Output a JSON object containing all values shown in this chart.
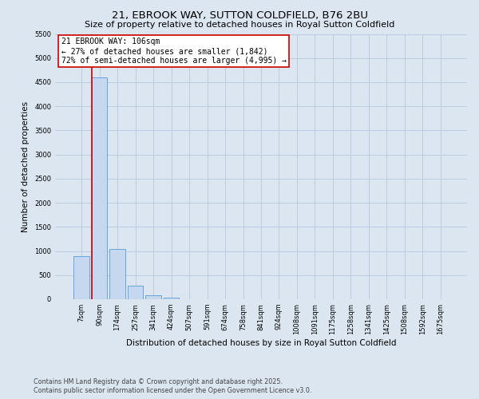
{
  "title": "21, EBROOK WAY, SUTTON COLDFIELD, B76 2BU",
  "subtitle": "Size of property relative to detached houses in Royal Sutton Coldfield",
  "xlabel": "Distribution of detached houses by size in Royal Sutton Coldfield",
  "ylabel": "Number of detached properties",
  "categories": [
    "7sqm",
    "90sqm",
    "174sqm",
    "257sqm",
    "341sqm",
    "424sqm",
    "507sqm",
    "591sqm",
    "674sqm",
    "758sqm",
    "841sqm",
    "924sqm",
    "1008sqm",
    "1091sqm",
    "1175sqm",
    "1258sqm",
    "1341sqm",
    "1425sqm",
    "1508sqm",
    "1592sqm",
    "1675sqm"
  ],
  "values": [
    900,
    4600,
    1050,
    280,
    80,
    35,
    0,
    0,
    0,
    0,
    0,
    0,
    0,
    0,
    0,
    0,
    0,
    0,
    0,
    0,
    0
  ],
  "bar_color": "#c5d8f0",
  "bar_edge_color": "#5b9bd5",
  "bar_edge_width": 0.6,
  "vline_color": "#cc0000",
  "annotation_line1": "21 EBROOK WAY: 106sqm",
  "annotation_line2": "← 27% of detached houses are smaller (1,842)",
  "annotation_line3": "72% of semi-detached houses are larger (4,995) →",
  "annotation_box_color": "#cc0000",
  "annotation_bg": "#ffffff",
  "ylim": [
    0,
    5500
  ],
  "yticks": [
    0,
    500,
    1000,
    1500,
    2000,
    2500,
    3000,
    3500,
    4000,
    4500,
    5000,
    5500
  ],
  "grid_color": "#b8c8dc",
  "bg_color": "#dce6f1",
  "plot_bg": "#dce6f1",
  "footer_line1": "Contains HM Land Registry data © Crown copyright and database right 2025.",
  "footer_line2": "Contains public sector information licensed under the Open Government Licence v3.0.",
  "title_fontsize": 9.5,
  "subtitle_fontsize": 8,
  "axis_label_fontsize": 7.5,
  "tick_fontsize": 6,
  "annotation_fontsize": 7,
  "footer_fontsize": 5.8
}
